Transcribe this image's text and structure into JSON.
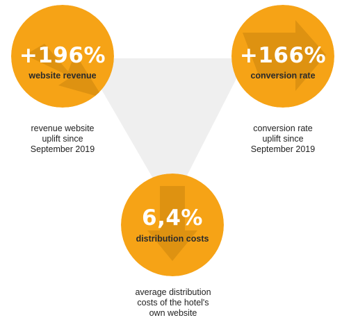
{
  "colors": {
    "circle": "#F6A316",
    "circle_shadow": "#D98F10",
    "triangle": "#EFEFEF",
    "label_text": "#2B2B2B",
    "caption_text": "#1F1F1F"
  },
  "stats": {
    "revenue": {
      "value": "+196%",
      "label": "website revenue",
      "icon": "arrow-up-right-icon",
      "caption": [
        "revenue website",
        "uplift since",
        "September 2019"
      ]
    },
    "conversion": {
      "value": "+166%",
      "label": "conversion rate",
      "icon": "arrow-up-right-icon",
      "caption": [
        "conversion rate",
        "uplift since",
        "September 2019"
      ]
    },
    "distribution": {
      "value": "6,4%",
      "label": "distribution costs",
      "icon": "arrow-down-icon",
      "caption": [
        "average distribution",
        "costs of the hotel's",
        "own website"
      ]
    }
  }
}
